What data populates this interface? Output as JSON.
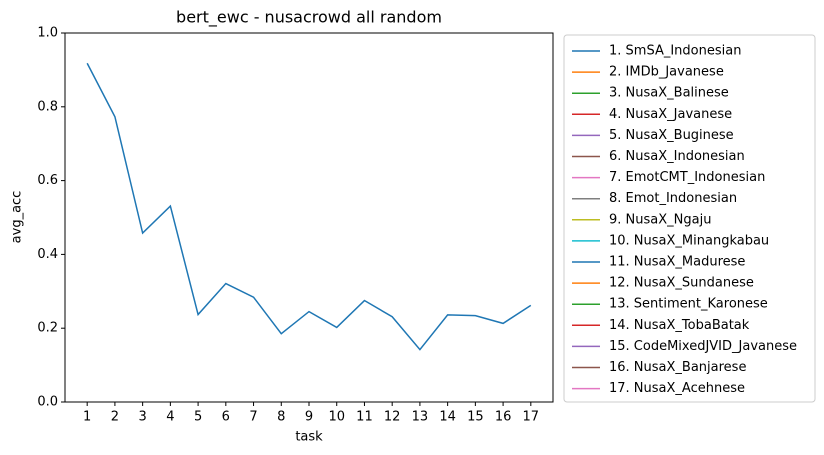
{
  "chart_data": {
    "type": "line",
    "title": "bert_ewc - nusacrowd all random",
    "xlabel": "task",
    "ylabel": "avg_acc",
    "x": [
      1,
      2,
      3,
      4,
      5,
      6,
      7,
      8,
      9,
      10,
      11,
      12,
      13,
      14,
      15,
      16,
      17
    ],
    "xlim": [
      0.2,
      17.8
    ],
    "xticks": [
      1,
      2,
      3,
      4,
      5,
      6,
      7,
      8,
      9,
      10,
      11,
      12,
      13,
      14,
      15,
      16,
      17
    ],
    "ylim": [
      0,
      1
    ],
    "yticks": [
      {
        "value": 0,
        "label": "0.0"
      },
      0.2,
      0.4,
      0.6,
      0.8,
      {
        "value": 1,
        "label": "1.0"
      }
    ],
    "legend": "outside right",
    "series": [
      {
        "name": "1. SmSA_Indonesian",
        "color": "#1f77b4",
        "values": [
          0.918,
          0.773,
          0.458,
          0.531,
          0.237,
          0.321,
          0.284,
          0.185,
          0.245,
          0.202,
          0.275,
          0.231,
          0.142,
          0.236,
          0.234,
          0.213,
          0.262
        ]
      },
      {
        "name": "2. IMDb_Javanese",
        "color": "#ff7f0e",
        "values": [
          null,
          null,
          null,
          null,
          null,
          null,
          null,
          null,
          null,
          null,
          null,
          null,
          null,
          null,
          null,
          null,
          null
        ]
      },
      {
        "name": "3. NusaX_Balinese",
        "color": "#2ca02c",
        "values": [
          null,
          null,
          null,
          null,
          null,
          null,
          null,
          null,
          null,
          null,
          null,
          null,
          null,
          null,
          null,
          null,
          null
        ]
      },
      {
        "name": "4. NusaX_Javanese",
        "color": "#d62728",
        "values": [
          null,
          null,
          null,
          null,
          null,
          null,
          null,
          null,
          null,
          null,
          null,
          null,
          null,
          null,
          null,
          null,
          null
        ]
      },
      {
        "name": "5. NusaX_Buginese",
        "color": "#9467bd",
        "values": [
          null,
          null,
          null,
          null,
          null,
          null,
          null,
          null,
          null,
          null,
          null,
          null,
          null,
          null,
          null,
          null,
          null
        ]
      },
      {
        "name": "6. NusaX_Indonesian",
        "color": "#8c564b",
        "values": [
          null,
          null,
          null,
          null,
          null,
          null,
          null,
          null,
          null,
          null,
          null,
          null,
          null,
          null,
          null,
          null,
          null
        ]
      },
      {
        "name": "7. EmotCMT_Indonesian",
        "color": "#e377c2",
        "values": [
          null,
          null,
          null,
          null,
          null,
          null,
          null,
          null,
          null,
          null,
          null,
          null,
          null,
          null,
          null,
          null,
          null
        ]
      },
      {
        "name": "8. Emot_Indonesian",
        "color": "#7f7f7f",
        "values": [
          null,
          null,
          null,
          null,
          null,
          null,
          null,
          null,
          null,
          null,
          null,
          null,
          null,
          null,
          null,
          null,
          null
        ]
      },
      {
        "name": "9. NusaX_Ngaju",
        "color": "#bcbd22",
        "values": [
          null,
          null,
          null,
          null,
          null,
          null,
          null,
          null,
          null,
          null,
          null,
          null,
          null,
          null,
          null,
          null,
          null
        ]
      },
      {
        "name": "10. NusaX_Minangkabau",
        "color": "#17becf",
        "values": [
          null,
          null,
          null,
          null,
          null,
          null,
          null,
          null,
          null,
          null,
          null,
          null,
          null,
          null,
          null,
          null,
          null
        ]
      },
      {
        "name": "11. NusaX_Madurese",
        "color": "#1f77b4",
        "values": [
          null,
          null,
          null,
          null,
          null,
          null,
          null,
          null,
          null,
          null,
          null,
          null,
          null,
          null,
          null,
          null,
          null
        ]
      },
      {
        "name": "12. NusaX_Sundanese",
        "color": "#ff7f0e",
        "values": [
          null,
          null,
          null,
          null,
          null,
          null,
          null,
          null,
          null,
          null,
          null,
          null,
          null,
          null,
          null,
          null,
          null
        ]
      },
      {
        "name": "13. Sentiment_Karonese",
        "color": "#2ca02c",
        "values": [
          null,
          null,
          null,
          null,
          null,
          null,
          null,
          null,
          null,
          null,
          null,
          null,
          null,
          null,
          null,
          null,
          null
        ]
      },
      {
        "name": "14. NusaX_TobaBatak",
        "color": "#d62728",
        "values": [
          null,
          null,
          null,
          null,
          null,
          null,
          null,
          null,
          null,
          null,
          null,
          null,
          null,
          null,
          null,
          null,
          null
        ]
      },
      {
        "name": "15. CodeMixedJVID_Javanese",
        "color": "#9467bd",
        "values": [
          null,
          null,
          null,
          null,
          null,
          null,
          null,
          null,
          null,
          null,
          null,
          null,
          null,
          null,
          null,
          null,
          null
        ]
      },
      {
        "name": "16. NusaX_Banjarese",
        "color": "#8c564b",
        "values": [
          null,
          null,
          null,
          null,
          null,
          null,
          null,
          null,
          null,
          null,
          null,
          null,
          null,
          null,
          null,
          null,
          null
        ]
      },
      {
        "name": "17. NusaX_Acehnese",
        "color": "#e377c2",
        "values": [
          null,
          null,
          null,
          null,
          null,
          null,
          null,
          null,
          null,
          null,
          null,
          null,
          null,
          null,
          null,
          null,
          null
        ]
      }
    ]
  }
}
